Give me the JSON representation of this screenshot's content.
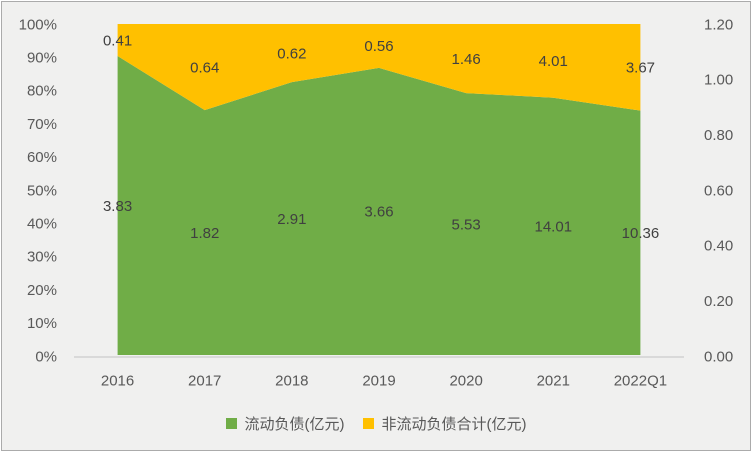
{
  "chart_data": {
    "type": "area",
    "stacking": "percent",
    "title": "",
    "categories": [
      "2016",
      "2017",
      "2018",
      "2019",
      "2020",
      "2021",
      "2022Q1"
    ],
    "series": [
      {
        "name": "流动负债(亿元)",
        "color": "#70AD47",
        "values": [
          3.83,
          1.82,
          2.91,
          3.66,
          5.53,
          14.01,
          10.36
        ],
        "labels": [
          "3.83",
          "1.82",
          "2.91",
          "3.66",
          "5.53",
          "14.01",
          "10.36"
        ]
      },
      {
        "name": "非流动负债合计(亿元)",
        "color": "#FFC000",
        "values": [
          0.41,
          0.64,
          0.62,
          0.56,
          1.46,
          4.01,
          3.67
        ],
        "labels": [
          "0.41",
          "0.64",
          "0.62",
          "0.56",
          "1.46",
          "4.01",
          "3.67"
        ]
      }
    ],
    "y_axis_left": {
      "ticks": [
        "100%",
        "90%",
        "80%",
        "70%",
        "60%",
        "50%",
        "40%",
        "30%",
        "20%",
        "10%",
        "0%"
      ],
      "range": [
        0,
        1
      ]
    },
    "y_axis_right": {
      "ticks": [
        "1.20",
        "1.00",
        "0.80",
        "0.60",
        "0.40",
        "0.20",
        "0.00"
      ],
      "range": [
        0.0,
        1.2
      ]
    },
    "legend": {
      "position": "bottom"
    },
    "grid": "off",
    "colors": {
      "data_label": "#404040",
      "axis_text": "#595959",
      "axis_line": "#D9D9D9",
      "background": "#F0F0EF"
    }
  }
}
